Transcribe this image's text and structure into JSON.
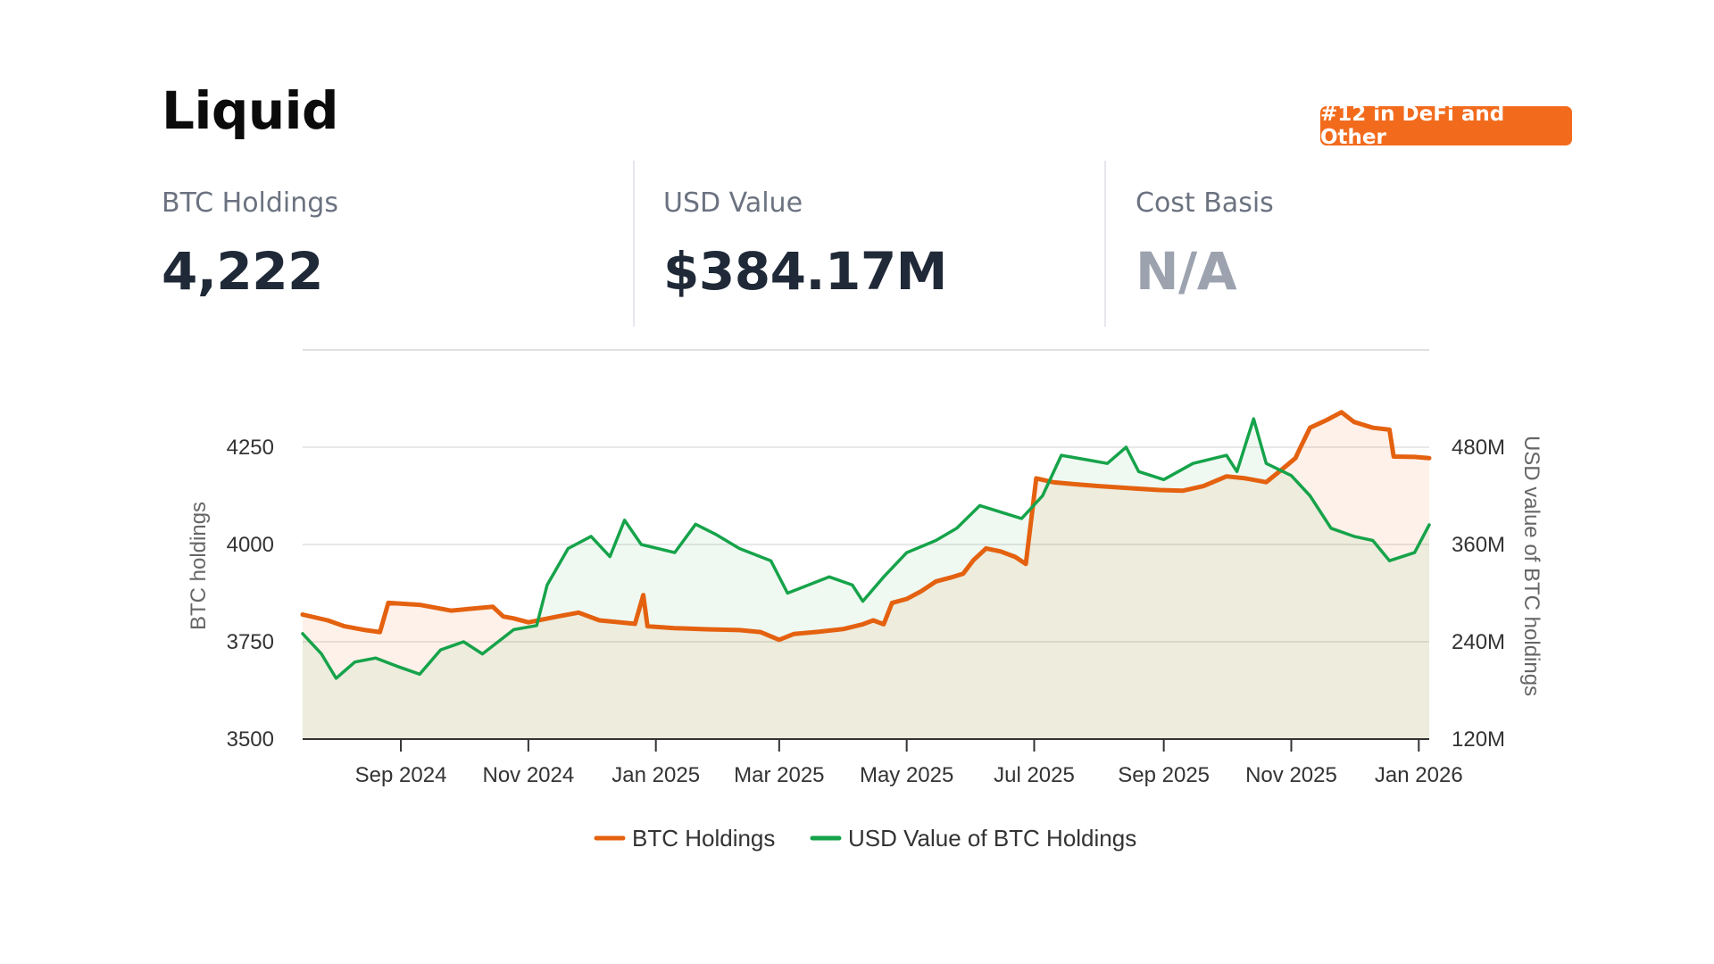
{
  "header": {
    "title": "Liquid",
    "rank_badge": "#12 in DeFi and Other"
  },
  "stats": [
    {
      "label": "BTC Holdings",
      "value": "4,222"
    },
    {
      "label": "USD Value",
      "value": "$384.17M"
    },
    {
      "label": "Cost Basis",
      "value": "N/A"
    }
  ],
  "colors": {
    "btc": "#e4610f",
    "usd": "#16a34a",
    "badge": "#f26b1d"
  },
  "chart_data": {
    "type": "line",
    "title": "",
    "x_range": [
      "2024-07-16",
      "2026-01-06"
    ],
    "x_ticks": [
      {
        "date": "2024-09-01",
        "label": "Sep 2024"
      },
      {
        "date": "2024-11-01",
        "label": "Nov 2024"
      },
      {
        "date": "2025-01-01",
        "label": "Jan 2025"
      },
      {
        "date": "2025-03-01",
        "label": "Mar 2025"
      },
      {
        "date": "2025-05-01",
        "label": "May 2025"
      },
      {
        "date": "2025-07-01",
        "label": "Jul 2025"
      },
      {
        "date": "2025-09-01",
        "label": "Sep 2025"
      },
      {
        "date": "2025-11-01",
        "label": "Nov 2025"
      },
      {
        "date": "2026-01-01",
        "label": "Jan 2026"
      }
    ],
    "y_left": {
      "label": "BTC holdings",
      "range": [
        3500,
        4500
      ],
      "ticks": [
        3500,
        3750,
        4000,
        4250
      ],
      "tick_labels": [
        "3500",
        "3750",
        "4000",
        "4250"
      ]
    },
    "y_right": {
      "label": "USD value of BTC holdings",
      "range": [
        120000000,
        600000000
      ],
      "ticks": [
        120000000,
        240000000,
        360000000,
        480000000
      ],
      "tick_labels": [
        "120M",
        "240M",
        "360M",
        "480M"
      ]
    },
    "grid": true,
    "legend_position": "bottom",
    "series": [
      {
        "name": "BTC Holdings",
        "axis": "left",
        "color": "#e4610f",
        "points": [
          [
            "2024-07-16",
            3820
          ],
          [
            "2024-07-28",
            3805
          ],
          [
            "2024-08-05",
            3790
          ],
          [
            "2024-08-15",
            3780
          ],
          [
            "2024-08-22",
            3775
          ],
          [
            "2024-08-26",
            3850
          ],
          [
            "2024-09-10",
            3845
          ],
          [
            "2024-09-25",
            3830
          ],
          [
            "2024-10-05",
            3835
          ],
          [
            "2024-10-15",
            3840
          ],
          [
            "2024-10-20",
            3815
          ],
          [
            "2024-10-25",
            3810
          ],
          [
            "2024-11-01",
            3800
          ],
          [
            "2024-11-15",
            3815
          ],
          [
            "2024-11-25",
            3825
          ],
          [
            "2024-12-05",
            3805
          ],
          [
            "2024-12-15",
            3800
          ],
          [
            "2024-12-22",
            3796
          ],
          [
            "2024-12-26",
            3870
          ],
          [
            "2024-12-28",
            3790
          ],
          [
            "2025-01-10",
            3785
          ],
          [
            "2025-01-25",
            3782
          ],
          [
            "2025-02-10",
            3780
          ],
          [
            "2025-02-20",
            3775
          ],
          [
            "2025-03-01",
            3755
          ],
          [
            "2025-03-08",
            3770
          ],
          [
            "2025-03-20",
            3776
          ],
          [
            "2025-04-01",
            3783
          ],
          [
            "2025-04-10",
            3795
          ],
          [
            "2025-04-15",
            3805
          ],
          [
            "2025-04-20",
            3795
          ],
          [
            "2025-04-24",
            3850
          ],
          [
            "2025-05-01",
            3860
          ],
          [
            "2025-05-08",
            3880
          ],
          [
            "2025-05-15",
            3905
          ],
          [
            "2025-05-22",
            3915
          ],
          [
            "2025-05-28",
            3925
          ],
          [
            "2025-06-02",
            3960
          ],
          [
            "2025-06-08",
            3990
          ],
          [
            "2025-06-15",
            3982
          ],
          [
            "2025-06-22",
            3968
          ],
          [
            "2025-06-27",
            3950
          ],
          [
            "2025-07-02",
            4170
          ],
          [
            "2025-07-10",
            4160
          ],
          [
            "2025-07-20",
            4155
          ],
          [
            "2025-08-01",
            4150
          ],
          [
            "2025-08-15",
            4145
          ],
          [
            "2025-08-30",
            4140
          ],
          [
            "2025-09-10",
            4138
          ],
          [
            "2025-09-20",
            4150
          ],
          [
            "2025-10-01",
            4175
          ],
          [
            "2025-10-10",
            4170
          ],
          [
            "2025-10-20",
            4160
          ],
          [
            "2025-10-28",
            4195
          ],
          [
            "2025-11-03",
            4222
          ],
          [
            "2025-11-05",
            4245
          ],
          [
            "2025-11-10",
            4300
          ],
          [
            "2025-11-18",
            4320
          ],
          [
            "2025-11-25",
            4340
          ],
          [
            "2025-12-01",
            4315
          ],
          [
            "2025-12-10",
            4300
          ],
          [
            "2025-12-18",
            4295
          ],
          [
            "2025-12-20",
            4226
          ],
          [
            "2025-12-30",
            4225
          ],
          [
            "2026-01-06",
            4222
          ]
        ]
      },
      {
        "name": "USD Value of BTC Holdings",
        "axis": "right",
        "color": "#16a34a",
        "points": [
          [
            "2024-07-16",
            250000000
          ],
          [
            "2024-07-25",
            225000000
          ],
          [
            "2024-08-01",
            195000000
          ],
          [
            "2024-08-10",
            215000000
          ],
          [
            "2024-08-20",
            220000000
          ],
          [
            "2024-08-30",
            210000000
          ],
          [
            "2024-09-10",
            200000000
          ],
          [
            "2024-09-20",
            230000000
          ],
          [
            "2024-10-01",
            240000000
          ],
          [
            "2024-10-10",
            225000000
          ],
          [
            "2024-10-25",
            255000000
          ],
          [
            "2024-11-05",
            260000000
          ],
          [
            "2024-11-10",
            310000000
          ],
          [
            "2024-11-20",
            355000000
          ],
          [
            "2024-12-01",
            370000000
          ],
          [
            "2024-12-10",
            345000000
          ],
          [
            "2024-12-17",
            390000000
          ],
          [
            "2024-12-25",
            360000000
          ],
          [
            "2025-01-10",
            350000000
          ],
          [
            "2025-01-20",
            385000000
          ],
          [
            "2025-01-30",
            372000000
          ],
          [
            "2025-02-10",
            355000000
          ],
          [
            "2025-02-25",
            340000000
          ],
          [
            "2025-03-05",
            300000000
          ],
          [
            "2025-03-15",
            310000000
          ],
          [
            "2025-03-25",
            320000000
          ],
          [
            "2025-04-05",
            310000000
          ],
          [
            "2025-04-10",
            290000000
          ],
          [
            "2025-04-20",
            320000000
          ],
          [
            "2025-05-01",
            350000000
          ],
          [
            "2025-05-15",
            365000000
          ],
          [
            "2025-05-25",
            380000000
          ],
          [
            "2025-06-05",
            408000000
          ],
          [
            "2025-06-15",
            400000000
          ],
          [
            "2025-06-25",
            392000000
          ],
          [
            "2025-07-05",
            420000000
          ],
          [
            "2025-07-14",
            470000000
          ],
          [
            "2025-07-25",
            465000000
          ],
          [
            "2025-08-05",
            460000000
          ],
          [
            "2025-08-14",
            480000000
          ],
          [
            "2025-08-20",
            450000000
          ],
          [
            "2025-09-01",
            440000000
          ],
          [
            "2025-09-15",
            460000000
          ],
          [
            "2025-10-01",
            470000000
          ],
          [
            "2025-10-06",
            450000000
          ],
          [
            "2025-10-14",
            515000000
          ],
          [
            "2025-10-20",
            460000000
          ],
          [
            "2025-11-01",
            445000000
          ],
          [
            "2025-11-10",
            420000000
          ],
          [
            "2025-11-20",
            380000000
          ],
          [
            "2025-12-01",
            370000000
          ],
          [
            "2025-12-10",
            365000000
          ],
          [
            "2025-12-18",
            340000000
          ],
          [
            "2025-12-30",
            350000000
          ],
          [
            "2026-01-06",
            384170000
          ]
        ]
      }
    ]
  }
}
